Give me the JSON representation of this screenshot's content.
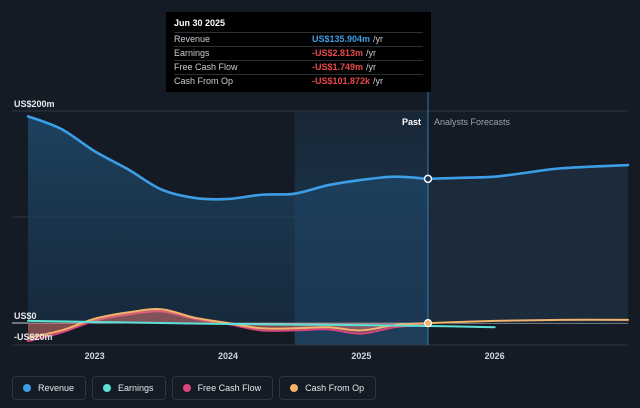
{
  "tooltip": {
    "date": "Jun 30 2025",
    "rows": [
      {
        "label": "Revenue",
        "value": "US$135.904m",
        "unit": "/yr",
        "color": "#3d9ee8"
      },
      {
        "label": "Earnings",
        "value": "-US$2.813m",
        "unit": "/yr",
        "color": "#e8484b"
      },
      {
        "label": "Free Cash Flow",
        "value": "-US$1.749m",
        "unit": "/yr",
        "color": "#e8484b"
      },
      {
        "label": "Cash From Op",
        "value": "-US$101.872k",
        "unit": "/yr",
        "color": "#e8484b"
      }
    ]
  },
  "labels": {
    "past": "Past",
    "forecast": "Analysts Forecasts"
  },
  "legend": [
    {
      "label": "Revenue",
      "color": "#3d9ee8"
    },
    {
      "label": "Earnings",
      "color": "#5de0d6"
    },
    {
      "label": "Free Cash Flow",
      "color": "#d9457f"
    },
    {
      "label": "Cash From Op",
      "color": "#f2b46a"
    }
  ],
  "chart_data": {
    "type": "line",
    "y_unit": "US$ millions",
    "ylim": [
      -20,
      200
    ],
    "y_ticks": [
      {
        "value": 200,
        "label": "US$200m"
      },
      {
        "value": 0,
        "label": "US$0"
      },
      {
        "value": -20,
        "label": "-US$20m"
      }
    ],
    "x_ticks": [
      {
        "value": 2023,
        "label": "2023"
      },
      {
        "value": 2024,
        "label": "2024"
      },
      {
        "value": 2025,
        "label": "2025"
      },
      {
        "value": 2026,
        "label": "2026"
      }
    ],
    "xlim": [
      2022.38,
      2027.0
    ],
    "highlight_range": [
      2024.5,
      2025.5
    ],
    "forecast_start": 2025.5,
    "grid": true,
    "legend_position": "bottom-left",
    "series": [
      {
        "name": "Revenue",
        "color": "#3d9ee8",
        "area": true,
        "points": [
          [
            2022.5,
            195
          ],
          [
            2022.75,
            183
          ],
          [
            2023.0,
            162
          ],
          [
            2023.25,
            145
          ],
          [
            2023.5,
            126
          ],
          [
            2023.75,
            118
          ],
          [
            2024.0,
            117
          ],
          [
            2024.25,
            121
          ],
          [
            2024.5,
            122
          ],
          [
            2024.75,
            130
          ],
          [
            2025.0,
            135
          ],
          [
            2025.25,
            138
          ],
          [
            2025.5,
            136
          ]
        ]
      },
      {
        "name": "Revenue Forecast",
        "color": "#3d9ee8",
        "area": true,
        "points": [
          [
            2025.5,
            136
          ],
          [
            2025.75,
            137
          ],
          [
            2026.0,
            138
          ],
          [
            2026.25,
            142
          ],
          [
            2026.5,
            146
          ],
          [
            2027.0,
            149
          ]
        ]
      },
      {
        "name": "Earnings",
        "color": "#5de0d6",
        "area": false,
        "points": [
          [
            2022.5,
            2
          ],
          [
            2023.0,
            1
          ],
          [
            2023.5,
            0
          ],
          [
            2024.0,
            -1
          ],
          [
            2024.5,
            -1.5
          ],
          [
            2025.0,
            -2
          ],
          [
            2025.5,
            -2.8
          ],
          [
            2026.0,
            -4
          ]
        ]
      },
      {
        "name": "Free Cash Flow",
        "color": "#d9457f",
        "area": true,
        "points": [
          [
            2022.5,
            -17
          ],
          [
            2022.75,
            -9
          ],
          [
            2023.0,
            2
          ],
          [
            2023.25,
            8
          ],
          [
            2023.5,
            11
          ],
          [
            2023.75,
            4
          ],
          [
            2024.0,
            -1
          ],
          [
            2024.25,
            -7
          ],
          [
            2024.5,
            -7
          ],
          [
            2024.75,
            -6
          ],
          [
            2025.0,
            -10
          ],
          [
            2025.25,
            -4
          ],
          [
            2025.5,
            -1.7
          ]
        ]
      },
      {
        "name": "Cash From Op",
        "color": "#f2b46a",
        "area": true,
        "points": [
          [
            2022.5,
            -14
          ],
          [
            2022.75,
            -7
          ],
          [
            2023.0,
            4
          ],
          [
            2023.25,
            10
          ],
          [
            2023.5,
            13
          ],
          [
            2023.75,
            5
          ],
          [
            2024.0,
            0
          ],
          [
            2024.25,
            -5
          ],
          [
            2024.5,
            -5
          ],
          [
            2024.75,
            -4
          ],
          [
            2025.0,
            -7
          ],
          [
            2025.25,
            -2
          ],
          [
            2025.5,
            -0.1
          ]
        ]
      },
      {
        "name": "Cash From Op Forecast",
        "color": "#f2b46a",
        "area": false,
        "points": [
          [
            2025.5,
            -0.1
          ],
          [
            2026.0,
            2
          ],
          [
            2026.5,
            3
          ],
          [
            2027.0,
            3
          ]
        ]
      }
    ]
  }
}
